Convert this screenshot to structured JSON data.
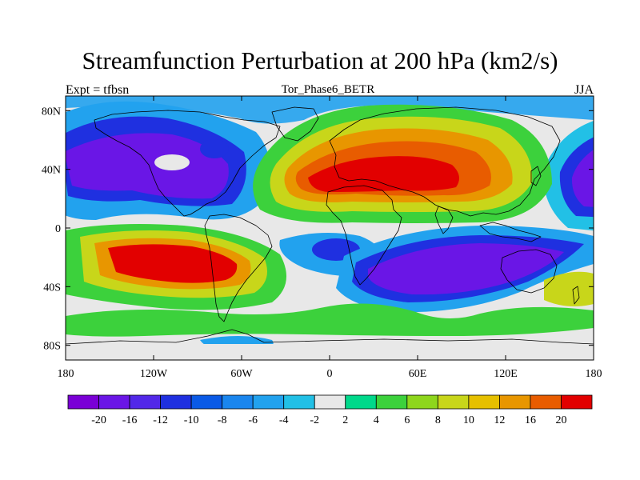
{
  "title": "Streamfunction Perturbation at 200 hPa (km2/s)",
  "left_string": "Expt = tfbsn",
  "center_string": "Tor_Phase6_BETR",
  "right_string": "JJA",
  "map": {
    "projection": "cylindrical equidistant",
    "lon_range": [
      -180,
      180
    ],
    "lat_range": [
      -90,
      90
    ],
    "lat_ticks": [
      {
        "value": 80,
        "label": "80N"
      },
      {
        "value": 40,
        "label": "40N"
      },
      {
        "value": 0,
        "label": "0"
      },
      {
        "value": -40,
        "label": "40S"
      },
      {
        "value": -80,
        "label": "80S"
      }
    ],
    "lon_ticks": [
      {
        "value": -180,
        "label": "180"
      },
      {
        "value": -120,
        "label": "120W"
      },
      {
        "value": -60,
        "label": "60W"
      },
      {
        "value": 0,
        "label": "0"
      },
      {
        "value": 60,
        "label": "60E"
      },
      {
        "value": 120,
        "label": "120E"
      },
      {
        "value": 180,
        "label": "180"
      }
    ]
  },
  "colorbar": {
    "labels": [
      "-20",
      "-16",
      "-12",
      "-10",
      "-8",
      "-6",
      "-4",
      "-2",
      "2",
      "4",
      "6",
      "8",
      "10",
      "12",
      "16",
      "20"
    ],
    "colors": [
      "#7a00d6",
      "#6a16e6",
      "#5228e8",
      "#1f30e0",
      "#0a5ae6",
      "#1a86ee",
      "#22a2ee",
      "#22c0e6",
      "#e8e8e8",
      "#00d88a",
      "#3cd13c",
      "#8ed61c",
      "#c8d61a",
      "#e6c000",
      "#e89600",
      "#e85c00",
      "#e20000"
    ]
  },
  "field_colors": {
    "ocean_background": "#e8e8e8",
    "strong_negative": "#7a00d6",
    "negative": "#1f30e0",
    "weak_negative": "#22a2ee",
    "weak_positive": "#3cd13c",
    "positive": "#e6c000",
    "strong_positive": "#e20000",
    "coastline": "#000000"
  },
  "features": [
    {
      "name": "north-pacific-negative-anomaly",
      "center": [
        -150,
        35
      ],
      "sign": "negative"
    },
    {
      "name": "south-pacific-positive-anomaly",
      "center": [
        -95,
        -18
      ],
      "sign": "positive"
    },
    {
      "name": "eurasia-positive-anomaly",
      "center": [
        40,
        30
      ],
      "sign": "positive"
    },
    {
      "name": "indian-ocean-negative-anomaly",
      "center": [
        75,
        -25
      ],
      "sign": "negative"
    },
    {
      "name": "west-pacific-negative-anomaly",
      "center": [
        170,
        40
      ],
      "sign": "negative"
    }
  ]
}
